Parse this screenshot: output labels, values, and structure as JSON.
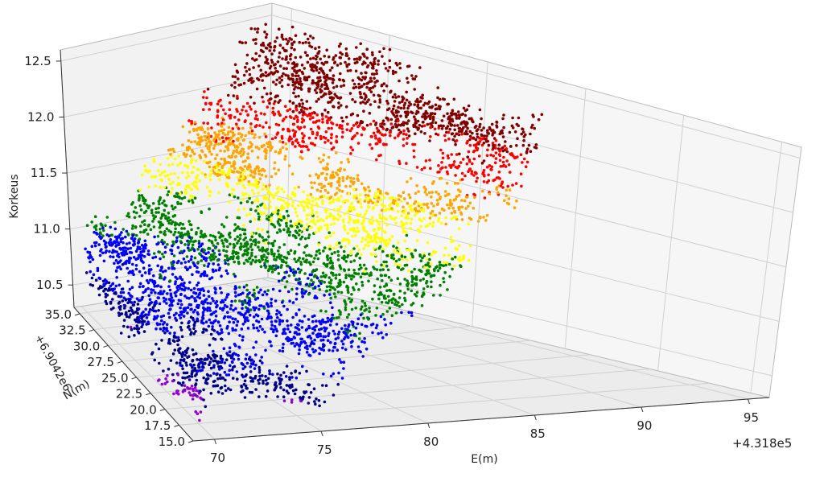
{
  "chart_data": {
    "type": "scatter",
    "projection": "3d",
    "title": "",
    "xlabel": "E(m)",
    "ylabel": "N(m)",
    "zlabel": "Korkeus",
    "x_offset_label": "+4.318e5",
    "y_offset_label": "+6.9042e6",
    "x_ticks": [
      "70",
      "75",
      "80",
      "85",
      "90",
      "95"
    ],
    "y_ticks": [
      "15.0",
      "17.5",
      "20.0",
      "22.5",
      "25.0",
      "27.5",
      "30.0",
      "32.5",
      "35.0"
    ],
    "z_ticks": [
      "10.5",
      "11.0",
      "11.5",
      "12.0",
      "12.5"
    ],
    "xlim": [
      69,
      96
    ],
    "ylim": [
      15,
      36
    ],
    "zlim": [
      10.3,
      12.6
    ],
    "grid": true,
    "legend": "none",
    "color_bands": [
      {
        "z_range": [
          10.25,
          10.4
        ],
        "color": "#9400d3"
      },
      {
        "z_range": [
          10.4,
          10.65
        ],
        "color": "#00008b"
      },
      {
        "z_range": [
          10.65,
          11.0
        ],
        "color": "#0000ff"
      },
      {
        "z_range": [
          11.0,
          11.3
        ],
        "color": "#008000"
      },
      {
        "z_range": [
          11.3,
          11.55
        ],
        "color": "#ffff00"
      },
      {
        "z_range": [
          11.55,
          11.8
        ],
        "color": "#ffa500"
      },
      {
        "z_range": [
          11.8,
          12.05
        ],
        "color": "#ff0000"
      },
      {
        "z_range": [
          12.05,
          12.3
        ],
        "color": "#800000"
      }
    ],
    "surface_samples": [
      {
        "e": 70,
        "n": 35,
        "z": 10.85
      },
      {
        "e": 70,
        "n": 25,
        "z": 10.55
      },
      {
        "e": 70,
        "n": 17,
        "z": 10.35
      },
      {
        "e": 75,
        "n": 35,
        "z": 11.05
      },
      {
        "e": 75,
        "n": 25,
        "z": 10.7
      },
      {
        "e": 75,
        "n": 17,
        "z": 10.4
      },
      {
        "e": 80,
        "n": 35,
        "z": 11.2
      },
      {
        "e": 80,
        "n": 25,
        "z": 10.95
      },
      {
        "e": 80,
        "n": 17,
        "z": 10.6
      },
      {
        "e": 85,
        "n": 35,
        "z": 11.7
      },
      {
        "e": 85,
        "n": 25,
        "z": 11.25
      },
      {
        "e": 85,
        "n": 17,
        "z": 10.85
      },
      {
        "e": 90,
        "n": 35,
        "z": 11.9
      },
      {
        "e": 90,
        "n": 25,
        "z": 11.55
      },
      {
        "e": 90,
        "n": 17,
        "z": 11.3
      },
      {
        "e": 95,
        "n": 35,
        "z": 12.05
      },
      {
        "e": 95,
        "n": 25,
        "z": 11.75
      },
      {
        "e": 95,
        "n": 17,
        "z": 11.55
      }
    ]
  }
}
